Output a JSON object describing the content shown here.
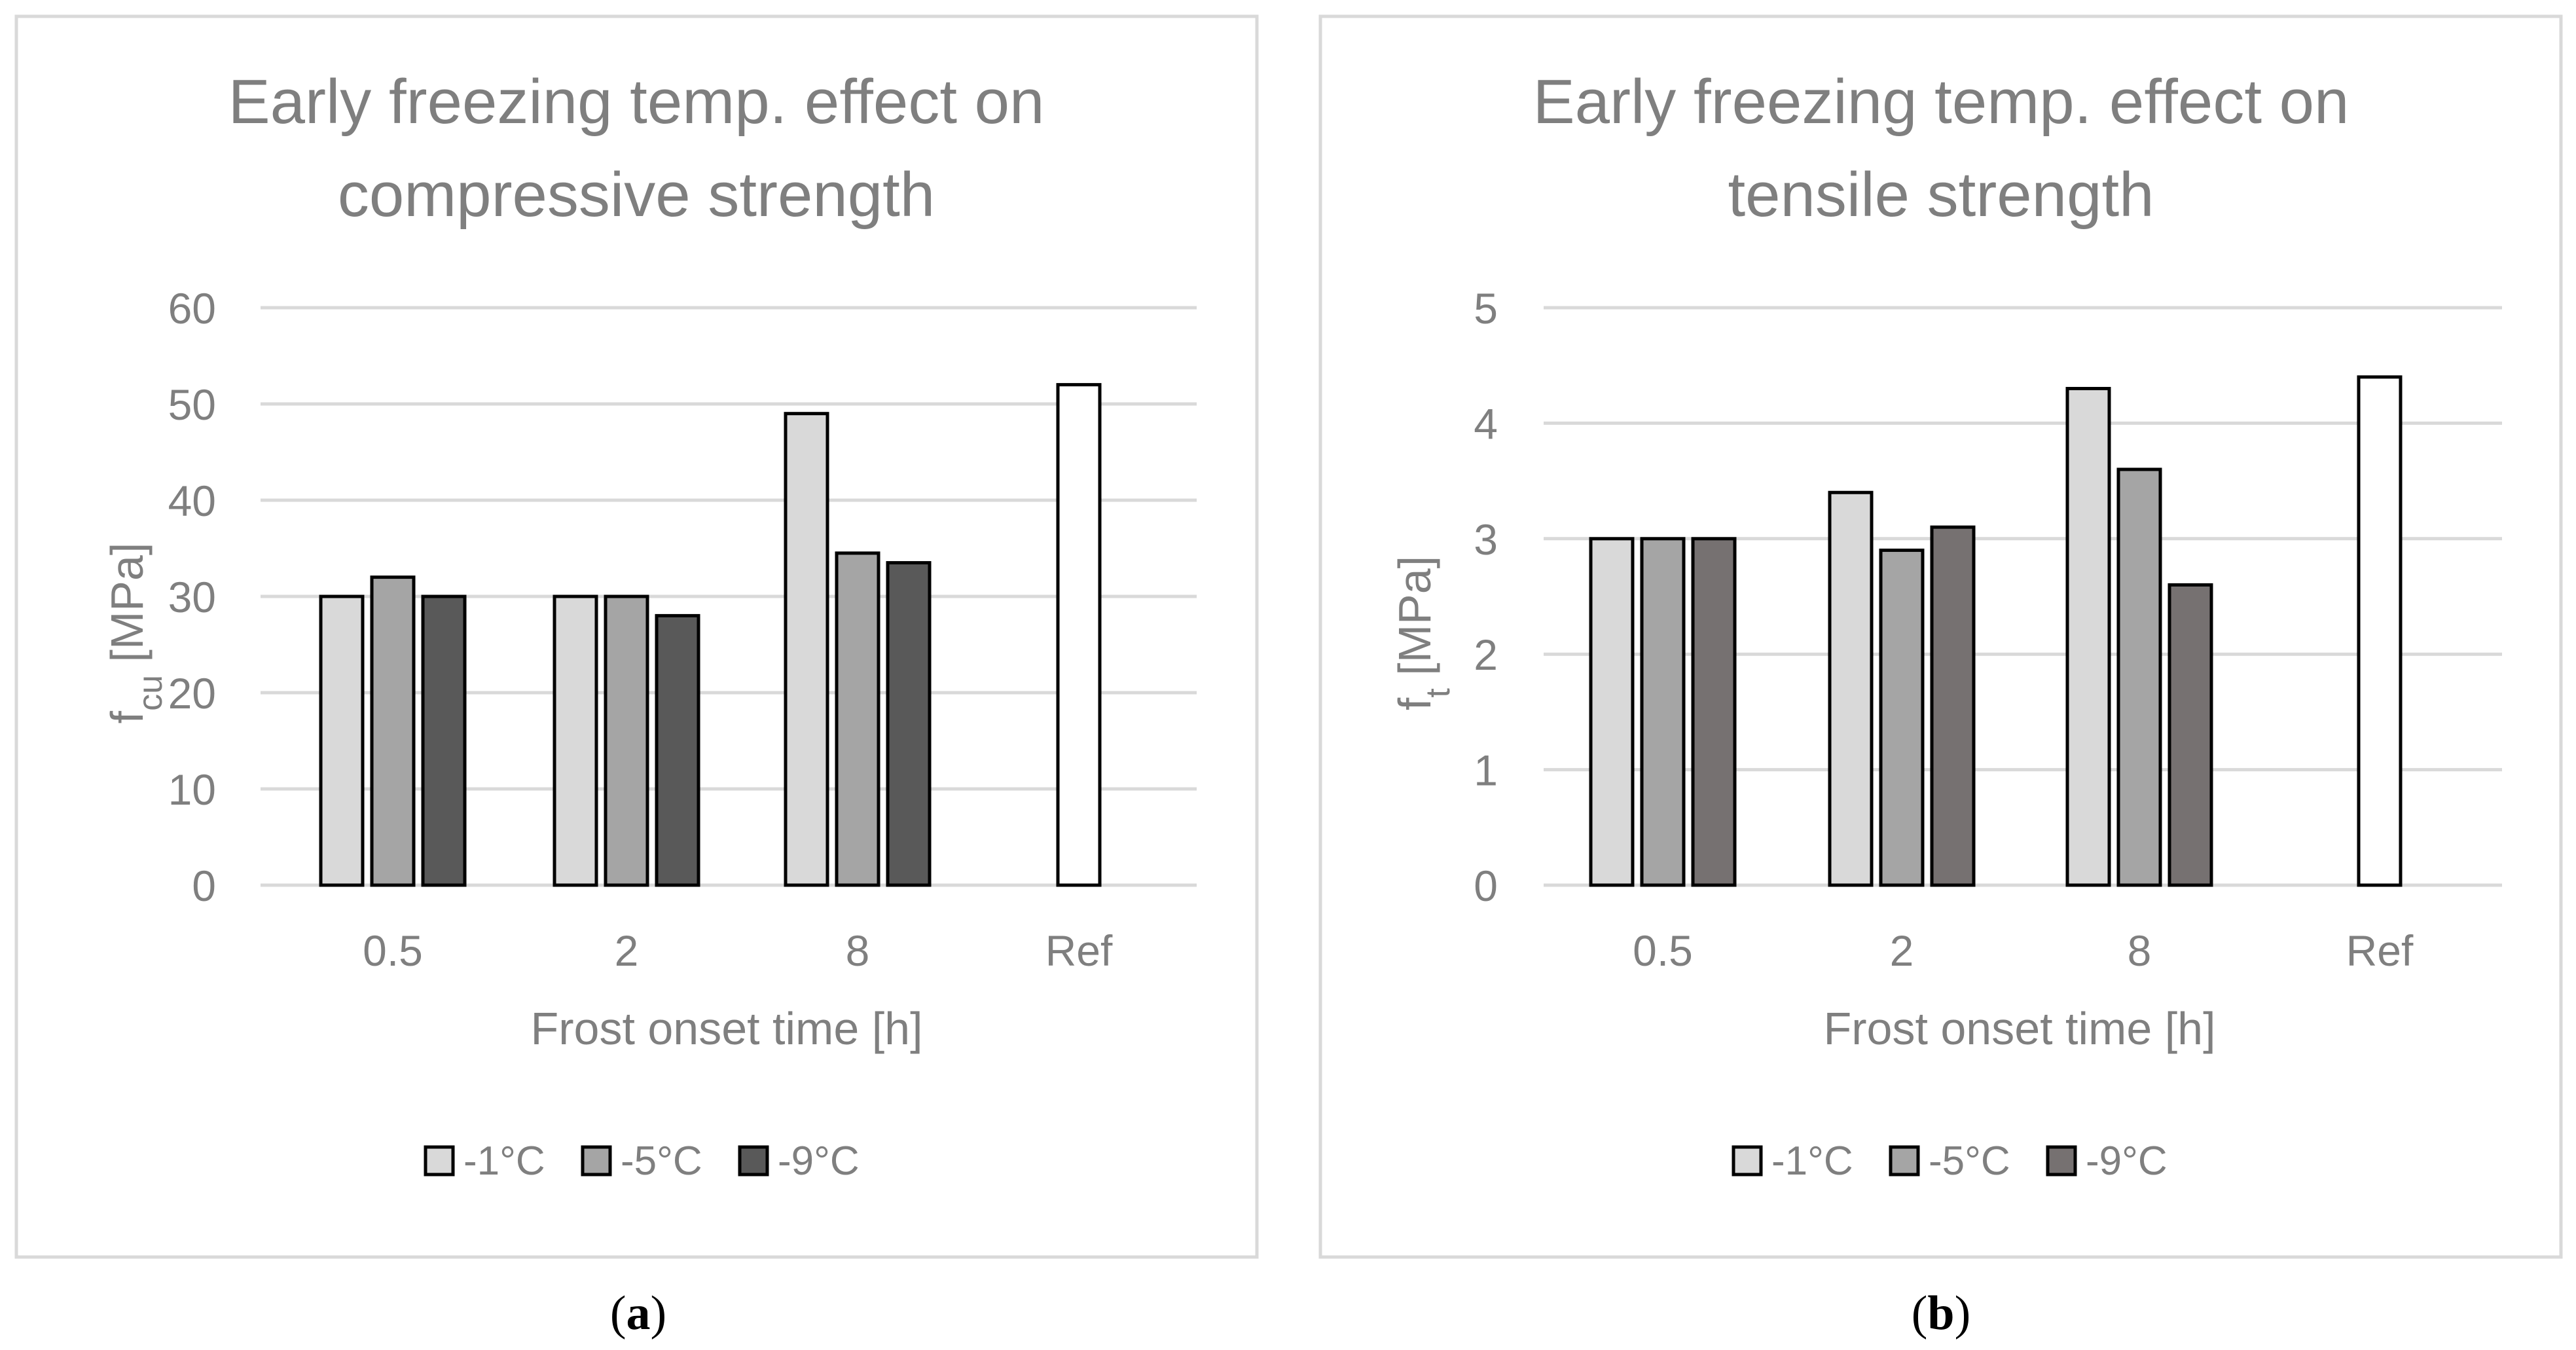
{
  "chart_data": [
    {
      "type": "bar",
      "panel": "a",
      "title_lines": [
        "Early freezing temp. effect on",
        "compressive strength"
      ],
      "xlabel": "Frost onset time [h]",
      "ylabel_main": "f",
      "ylabel_sub": "cu",
      "ylabel_unit": " [MPa]",
      "ylim": [
        0,
        60
      ],
      "yticks": [
        "0",
        "10",
        "20",
        "30",
        "40",
        "50",
        "60"
      ],
      "categories": [
        "0.5",
        "2",
        "8",
        "Ref"
      ],
      "series": [
        {
          "name": "-1°C",
          "color": "#d9d9d9",
          "values": [
            30,
            30,
            49,
            null
          ]
        },
        {
          "name": "-5°C",
          "color": "#a5a5a5",
          "values": [
            32,
            30,
            34.5,
            null
          ]
        },
        {
          "name": "-9°C",
          "color": "#595959",
          "values": [
            30,
            28,
            33.5,
            null
          ]
        }
      ],
      "reference": {
        "category": "Ref",
        "value": 52,
        "color": "#ffffff"
      },
      "legend": [
        "-1°C",
        "-5°C",
        "-9°C"
      ],
      "grid": true,
      "legend_position": "bottom"
    },
    {
      "type": "bar",
      "panel": "b",
      "title_lines": [
        "Early freezing temp. effect on",
        "tensile strength"
      ],
      "xlabel": "Frost onset time [h]",
      "ylabel_main": "f",
      "ylabel_sub": "t",
      "ylabel_unit": " [MPa]",
      "ylim": [
        0,
        5
      ],
      "yticks": [
        "0",
        "1",
        "2",
        "3",
        "4",
        "5"
      ],
      "categories": [
        "0.5",
        "2",
        "8",
        "Ref"
      ],
      "series": [
        {
          "name": "-1°C",
          "color": "#d9d9d9",
          "values": [
            3.0,
            3.4,
            4.3,
            null
          ]
        },
        {
          "name": "-5°C",
          "color": "#a5a5a5",
          "values": [
            3.0,
            2.9,
            3.6,
            null
          ]
        },
        {
          "name": "-9°C",
          "color": "#767171",
          "values": [
            3.0,
            3.1,
            2.6,
            null
          ]
        }
      ],
      "reference": {
        "category": "Ref",
        "value": 4.4,
        "color": "#ffffff"
      },
      "legend": [
        "-1°C",
        "-5°C",
        "-9°C"
      ],
      "grid": true,
      "legend_position": "bottom"
    }
  ],
  "captions": [
    "(a)",
    "(b)"
  ],
  "caption_letters": [
    "a",
    "b"
  ]
}
